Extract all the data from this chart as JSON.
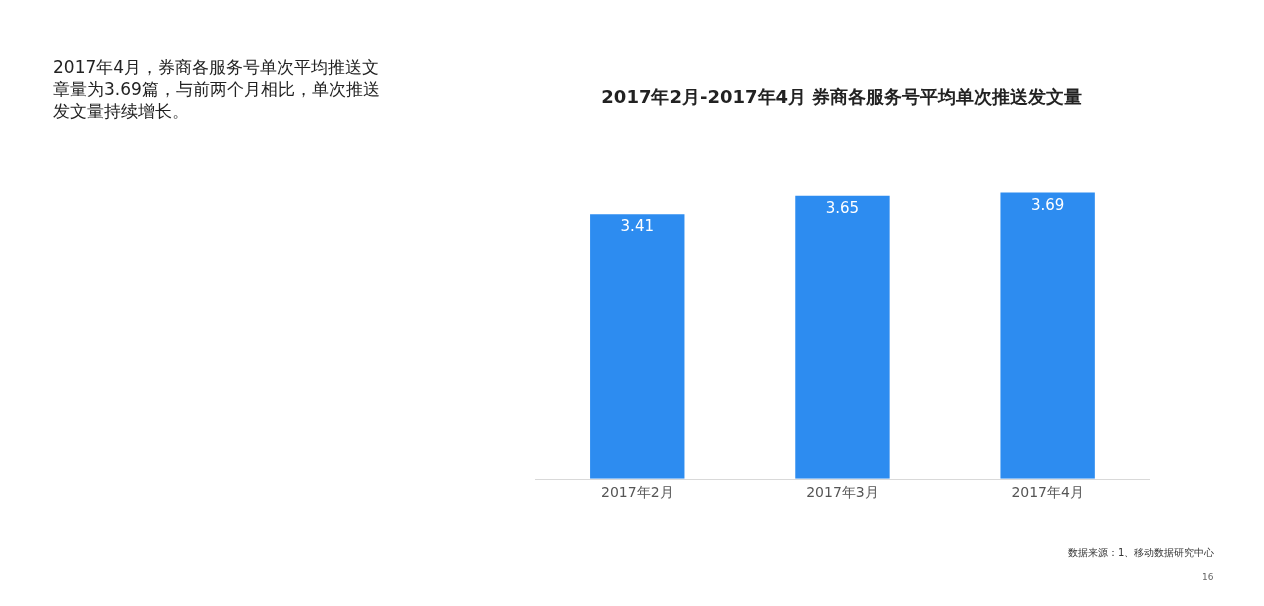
{
  "chart_data": {
    "type": "bar",
    "title": "2017年2月-2017年4月 券商各服务号平均单次推送发文量",
    "categories": [
      "2017年2月",
      "2017年3月",
      "2017年4月"
    ],
    "values": [
      3.41,
      3.65,
      3.69
    ],
    "color": "#2d8cf0",
    "data_labels": true,
    "legend": false,
    "tick_labels": "x",
    "annotations": [
      "2017年4月，券商各服务号单次平均推送文章量为3.69篇，与前两个月相比，单次推送发文量持续增长。",
      "数据来源：1、移动数据研究中心",
      "16"
    ]
  }
}
